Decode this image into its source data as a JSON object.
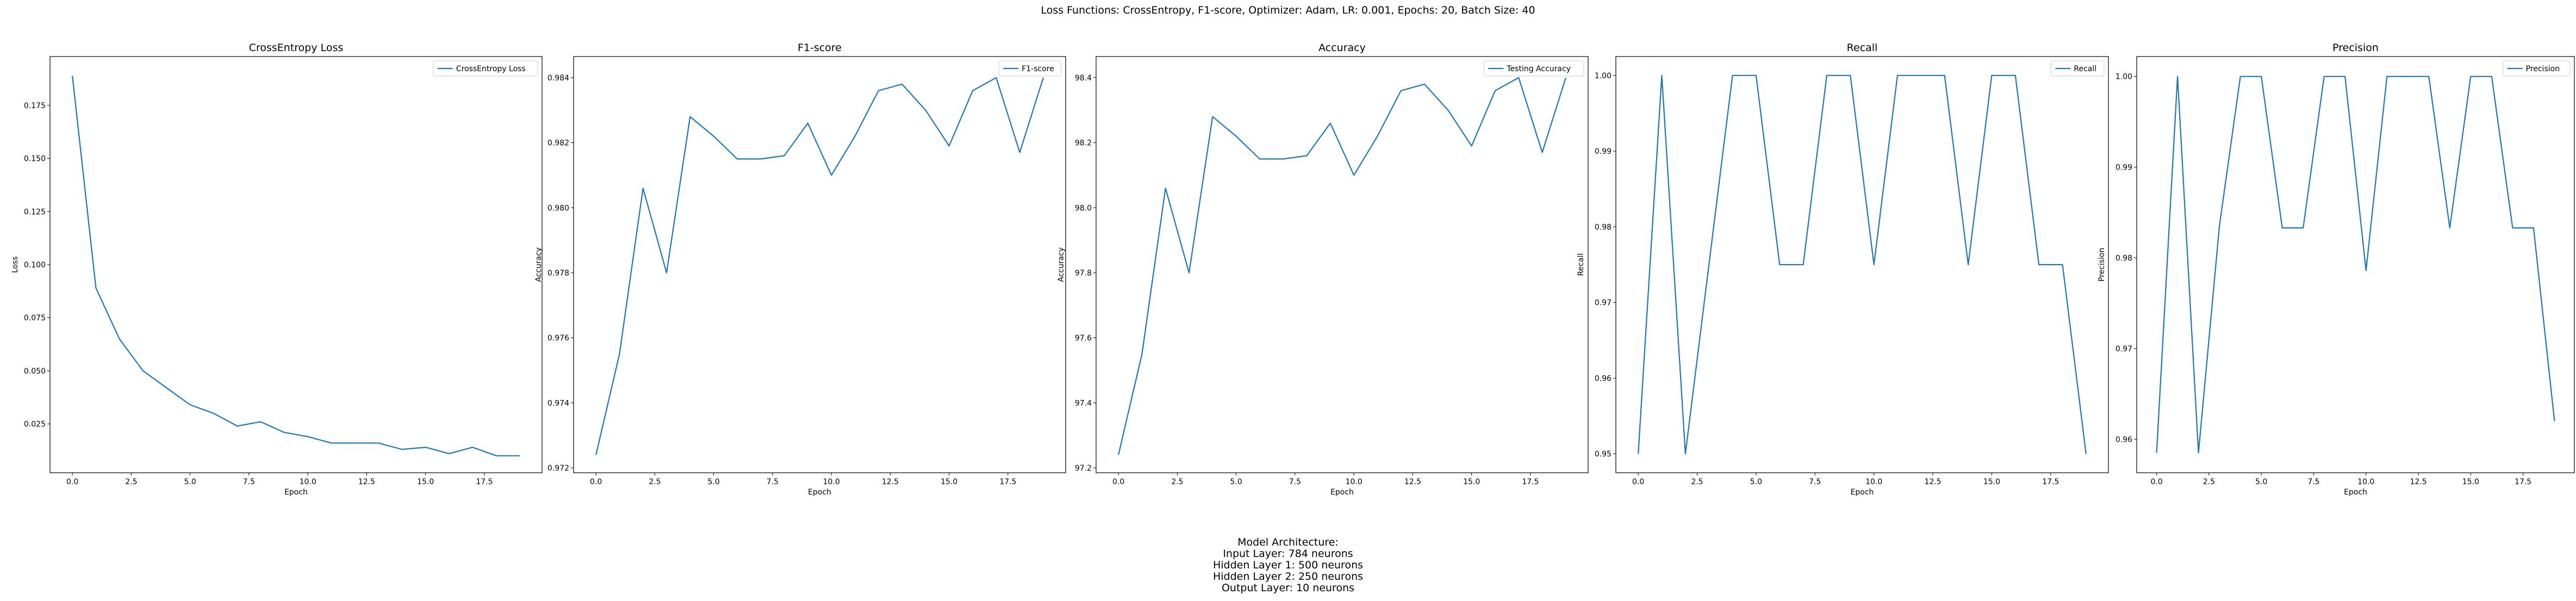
{
  "figure": {
    "suptitle": "Loss Functions: CrossEntropy, F1-score, Optimizer: Adam, LR: 0.001, Epochs: 20, Batch Size: 40",
    "architecture": {
      "lines": [
        "Model Architecture:",
        "Input Layer: 784 neurons",
        "Hidden Layer 1: 500 neurons",
        "Hidden Layer 2: 250 neurons",
        "Output Layer: 10 neurons"
      ]
    },
    "line_color": "#1f77b4"
  },
  "chart_data": [
    {
      "type": "line",
      "title": "CrossEntropy Loss",
      "xlabel": "Epoch",
      "ylabel": "Loss",
      "legend": "top-right",
      "x": [
        0,
        1,
        2,
        3,
        4,
        5,
        6,
        7,
        8,
        9,
        10,
        11,
        12,
        13,
        14,
        15,
        16,
        17,
        18,
        19
      ],
      "xlim": [
        -0.95,
        19.95
      ],
      "ylim": [
        0.002,
        0.198
      ],
      "xticks": [
        0,
        2.5,
        5,
        7.5,
        10,
        12.5,
        15,
        17.5
      ],
      "xtick_labels": [
        "0.0",
        "2.5",
        "5.0",
        "7.5",
        "10.0",
        "12.5",
        "15.0",
        "17.5"
      ],
      "yticks": [
        0.025,
        0.05,
        0.075,
        0.1,
        0.125,
        0.15,
        0.175
      ],
      "ytick_labels": [
        "0.025",
        "0.050",
        "0.075",
        "0.100",
        "0.125",
        "0.150",
        "0.175"
      ],
      "series": [
        {
          "name": "CrossEntropy Loss",
          "values": [
            0.189,
            0.089,
            0.065,
            0.05,
            0.042,
            0.034,
            0.03,
            0.024,
            0.026,
            0.021,
            0.019,
            0.016,
            0.016,
            0.016,
            0.013,
            0.014,
            0.011,
            0.014,
            0.01,
            0.01
          ]
        }
      ]
    },
    {
      "type": "line",
      "title": "F1-score",
      "xlabel": "Epoch",
      "ylabel": "Accuracy",
      "legend": "top-right",
      "x": [
        0,
        1,
        2,
        3,
        4,
        5,
        6,
        7,
        8,
        9,
        10,
        11,
        12,
        13,
        14,
        15,
        16,
        17,
        18,
        19
      ],
      "xlim": [
        -0.95,
        19.95
      ],
      "ylim": [
        0.97185,
        0.98465
      ],
      "xticks": [
        0,
        2.5,
        5,
        7.5,
        10,
        12.5,
        15,
        17.5
      ],
      "xtick_labels": [
        "0.0",
        "2.5",
        "5.0",
        "7.5",
        "10.0",
        "12.5",
        "15.0",
        "17.5"
      ],
      "yticks": [
        0.972,
        0.974,
        0.976,
        0.978,
        0.98,
        0.982,
        0.984
      ],
      "ytick_labels": [
        "0.972",
        "0.974",
        "0.976",
        "0.978",
        "0.980",
        "0.982",
        "0.984"
      ],
      "series": [
        {
          "name": "F1-score",
          "values": [
            0.9724,
            0.9755,
            0.9806,
            0.978,
            0.9828,
            0.9822,
            0.9815,
            0.9815,
            0.9816,
            0.9826,
            0.981,
            0.9822,
            0.9836,
            0.9838,
            0.983,
            0.9819,
            0.9836,
            0.984,
            0.9817,
            0.984
          ]
        }
      ]
    },
    {
      "type": "line",
      "title": "Accuracy",
      "xlabel": "Epoch",
      "ylabel": "Accuracy",
      "legend": "top-right",
      "x": [
        0,
        1,
        2,
        3,
        4,
        5,
        6,
        7,
        8,
        9,
        10,
        11,
        12,
        13,
        14,
        15,
        16,
        17,
        18,
        19
      ],
      "xlim": [
        -0.95,
        19.95
      ],
      "ylim": [
        97.185,
        98.465
      ],
      "xticks": [
        0,
        2.5,
        5,
        7.5,
        10,
        12.5,
        15,
        17.5
      ],
      "xtick_labels": [
        "0.0",
        "2.5",
        "5.0",
        "7.5",
        "10.0",
        "12.5",
        "15.0",
        "17.5"
      ],
      "yticks": [
        97.2,
        97.4,
        97.6,
        97.8,
        98.0,
        98.2,
        98.4
      ],
      "ytick_labels": [
        "97.2",
        "97.4",
        "97.6",
        "97.8",
        "98.0",
        "98.2",
        "98.4"
      ],
      "series": [
        {
          "name": "Testing Accuracy",
          "values": [
            97.24,
            97.55,
            98.06,
            97.8,
            98.28,
            98.22,
            98.15,
            98.15,
            98.16,
            98.26,
            98.1,
            98.22,
            98.36,
            98.38,
            98.3,
            98.19,
            98.36,
            98.4,
            98.17,
            98.4
          ]
        }
      ]
    },
    {
      "type": "line",
      "title": "Recall",
      "xlabel": "Epoch",
      "ylabel": "Recall",
      "legend": "top-right",
      "x": [
        0,
        1,
        2,
        3,
        4,
        5,
        6,
        7,
        8,
        9,
        10,
        11,
        12,
        13,
        14,
        15,
        16,
        17,
        18,
        19
      ],
      "xlim": [
        -0.95,
        19.95
      ],
      "ylim": [
        0.9475,
        1.0025
      ],
      "xticks": [
        0,
        2.5,
        5,
        7.5,
        10,
        12.5,
        15,
        17.5
      ],
      "xtick_labels": [
        "0.0",
        "2.5",
        "5.0",
        "7.5",
        "10.0",
        "12.5",
        "15.0",
        "17.5"
      ],
      "yticks": [
        0.95,
        0.96,
        0.97,
        0.98,
        0.99,
        1.0
      ],
      "ytick_labels": [
        "0.95",
        "0.96",
        "0.97",
        "0.98",
        "0.99",
        "1.00"
      ],
      "series": [
        {
          "name": "Recall",
          "values": [
            0.95,
            1.0,
            0.95,
            0.975,
            1.0,
            1.0,
            0.975,
            0.975,
            1.0,
            1.0,
            0.975,
            1.0,
            1.0,
            1.0,
            0.975,
            1.0,
            1.0,
            0.975,
            0.975,
            0.95
          ]
        }
      ]
    },
    {
      "type": "line",
      "title": "Precision",
      "xlabel": "Epoch",
      "ylabel": "Precision",
      "legend": "top-right",
      "x": [
        0,
        1,
        2,
        3,
        4,
        5,
        6,
        7,
        8,
        9,
        10,
        11,
        12,
        13,
        14,
        15,
        16,
        17,
        18,
        19
      ],
      "xlim": [
        -0.95,
        19.95
      ],
      "ylim": [
        0.9563,
        1.0022
      ],
      "xticks": [
        0,
        2.5,
        5,
        7.5,
        10,
        12.5,
        15,
        17.5
      ],
      "xtick_labels": [
        "0.0",
        "2.5",
        "5.0",
        "7.5",
        "10.0",
        "12.5",
        "15.0",
        "17.5"
      ],
      "yticks": [
        0.96,
        0.97,
        0.98,
        0.99,
        1.0
      ],
      "ytick_labels": [
        "0.96",
        "0.97",
        "0.98",
        "0.99",
        "1.00"
      ],
      "series": [
        {
          "name": "Precision",
          "values": [
            0.9585,
            1.0,
            0.9585,
            0.9835,
            1.0,
            1.0,
            0.9833,
            0.9833,
            1.0,
            1.0,
            0.9786,
            1.0,
            1.0,
            1.0,
            0.9833,
            1.0,
            1.0,
            0.9833,
            0.9833,
            0.962
          ]
        }
      ]
    }
  ]
}
